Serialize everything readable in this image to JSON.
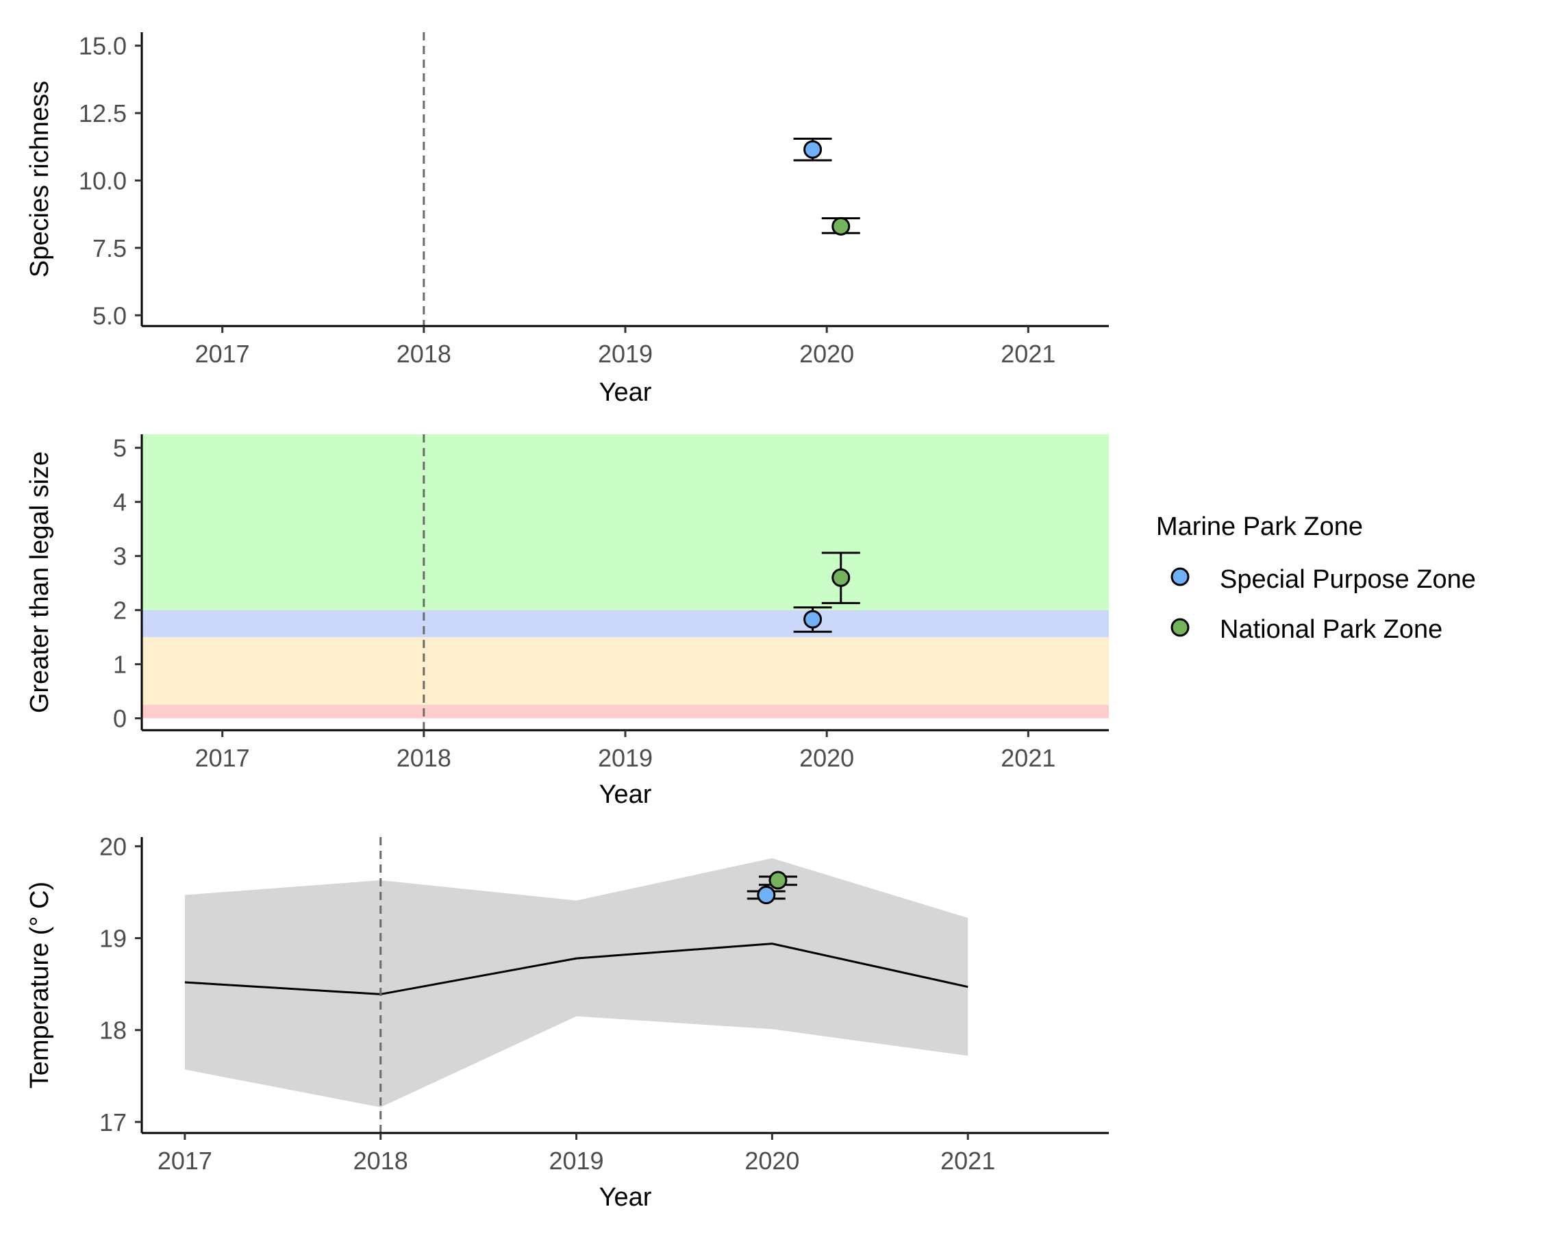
{
  "legend": {
    "title": "Marine Park Zone",
    "position": "right",
    "entries": [
      {
        "label": "Special Purpose Zone",
        "color": "#6fb0f7"
      },
      {
        "label": "National Park Zone",
        "color": "#74b25b"
      }
    ]
  },
  "chart_data": [
    {
      "type": "scatter",
      "xlabel": "Year",
      "ylabel": "Species richness",
      "xlim": [
        2016.6,
        2021.4
      ],
      "ylim": [
        4.6,
        15.5
      ],
      "xticks": [
        2017,
        2018,
        2019,
        2020,
        2021
      ],
      "yticks": [
        "5.0",
        "7.5",
        "10.0",
        "12.5",
        "15.0"
      ],
      "ytick_values": [
        5,
        7.5,
        10,
        12.5,
        15
      ],
      "vline": 2018,
      "grid": false,
      "series": [
        {
          "name": "Special Purpose Zone",
          "color": "#6fb0f7",
          "x": [
            2019.93
          ],
          "y": [
            11.15
          ],
          "ymin": [
            10.75
          ],
          "ymax": [
            11.55
          ]
        },
        {
          "name": "National Park Zone",
          "color": "#74b25b",
          "x": [
            2020.07
          ],
          "y": [
            8.3
          ],
          "ymin": [
            8.05
          ],
          "ymax": [
            8.6
          ]
        }
      ]
    },
    {
      "type": "scatter",
      "xlabel": "Year",
      "ylabel": "Greater than legal size",
      "xlim": [
        2016.6,
        2021.4
      ],
      "ylim": [
        -0.22,
        5.25
      ],
      "xticks": [
        2017,
        2018,
        2019,
        2020,
        2021
      ],
      "yticks": [
        "0",
        "1",
        "2",
        "3",
        "4",
        "5"
      ],
      "ytick_values": [
        0,
        1,
        2,
        3,
        4,
        5
      ],
      "vline": 2018,
      "grid": false,
      "bands": [
        {
          "from": 0,
          "to": 0.25,
          "color": "#ffcccc"
        },
        {
          "from": 0.25,
          "to": 1.5,
          "color": "#ffefcc"
        },
        {
          "from": 1.5,
          "to": 2.0,
          "color": "#cbd8fb"
        },
        {
          "from": 2.0,
          "to": 5.25,
          "color": "#cbfdc6"
        }
      ],
      "series": [
        {
          "name": "Special Purpose Zone",
          "color": "#6fb0f7",
          "x": [
            2019.93
          ],
          "y": [
            1.83
          ],
          "ymin": [
            1.6
          ],
          "ymax": [
            2.05
          ]
        },
        {
          "name": "National Park Zone",
          "color": "#74b25b",
          "x": [
            2020.07
          ],
          "y": [
            2.6
          ],
          "ymin": [
            2.13
          ],
          "ymax": [
            3.06
          ]
        }
      ]
    },
    {
      "type": "line",
      "xlabel": "Year",
      "ylabel": "Temperature (° C)",
      "xlim": [
        2016.78,
        2021.72
      ],
      "ylim": [
        16.88,
        20.1
      ],
      "xticks": [
        2017,
        2018,
        2019,
        2020,
        2021
      ],
      "yticks": [
        "17",
        "18",
        "19",
        "20"
      ],
      "ytick_values": [
        17,
        18,
        19,
        20
      ],
      "vline": 2018,
      "grid": false,
      "ribbon": {
        "x": [
          2017,
          2018,
          2019,
          2020,
          2021
        ],
        "mean": [
          18.52,
          18.39,
          18.78,
          18.94,
          18.47
        ],
        "lower": [
          17.57,
          17.16,
          18.15,
          18.01,
          17.72
        ],
        "upper": [
          19.47,
          19.63,
          19.41,
          19.87,
          19.22
        ]
      },
      "series": [
        {
          "name": "Special Purpose Zone",
          "color": "#6fb0f7",
          "x": [
            2019.97
          ],
          "y": [
            19.47
          ],
          "ymin": [
            19.43
          ],
          "ymax": [
            19.51
          ]
        },
        {
          "name": "National Park Zone",
          "color": "#74b25b",
          "x": [
            2020.03
          ],
          "y": [
            19.63
          ],
          "ymin": [
            19.58
          ],
          "ymax": [
            19.67
          ]
        }
      ]
    }
  ]
}
